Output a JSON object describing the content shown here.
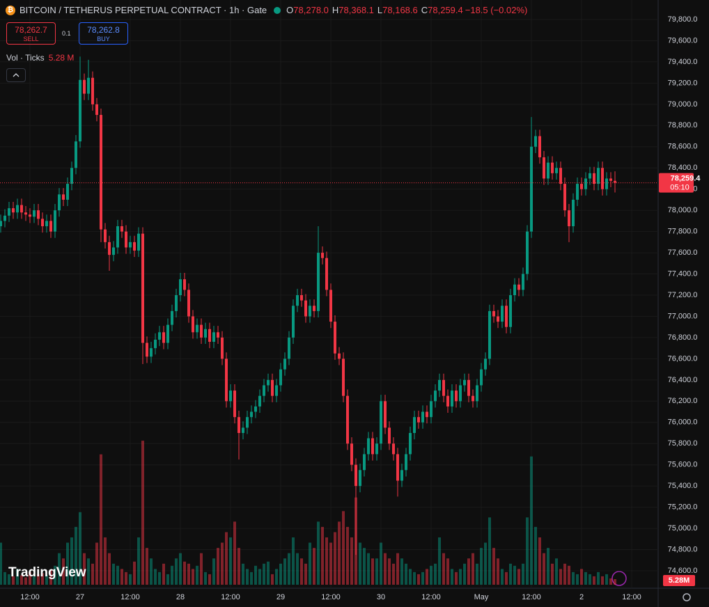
{
  "header": {
    "title": "BITCOIN / TETHERUS PERPETUAL CONTRACT · 1h · Gate",
    "ohlc": [
      {
        "key": "O",
        "value": "78,278.0"
      },
      {
        "key": "H",
        "value": "78,368.1"
      },
      {
        "key": "L",
        "value": "78,168.6"
      },
      {
        "key": "C",
        "value": "78,259.4"
      }
    ],
    "change": "−18.5 (−0.02%)",
    "sell_price": "78,262.7",
    "sell": "SELL",
    "spread": "0.1",
    "buy_price": "78,262.8",
    "buy": "BUY",
    "volume_title": "Vol · Ticks",
    "volume_value": "5.28 M"
  },
  "logo": "TradingView",
  "chart_data": {
    "type": "candlestick",
    "up_color": "#089981",
    "down_color": "#f23645",
    "grid": true,
    "categories": [
      null,
      null,
      null,
      null,
      null,
      null,
      null,
      "12:00",
      null,
      null,
      null,
      null,
      null,
      null,
      null,
      null,
      null,
      null,
      null,
      "27",
      null,
      null,
      null,
      null,
      null,
      null,
      null,
      null,
      null,
      null,
      null,
      "12:00",
      null,
      null,
      null,
      null,
      null,
      null,
      null,
      null,
      null,
      null,
      null,
      "28",
      null,
      null,
      null,
      null,
      null,
      null,
      null,
      null,
      null,
      null,
      null,
      "12:00",
      null,
      null,
      null,
      null,
      null,
      null,
      null,
      null,
      null,
      null,
      null,
      "29",
      null,
      null,
      null,
      null,
      null,
      null,
      null,
      null,
      null,
      null,
      null,
      "12:00",
      null,
      null,
      null,
      null,
      null,
      null,
      null,
      null,
      null,
      null,
      null,
      "30",
      null,
      null,
      null,
      null,
      null,
      null,
      null,
      null,
      null,
      null,
      null,
      "12:00",
      null,
      null,
      null,
      null,
      null,
      null,
      null,
      null,
      null,
      null,
      null,
      "May",
      null,
      null,
      null,
      null,
      null,
      null,
      null,
      null,
      null,
      null,
      null,
      "12:00",
      null,
      null,
      null,
      null,
      null,
      null,
      null,
      null,
      null,
      null,
      null,
      "2",
      null,
      null,
      null,
      null,
      null,
      null,
      null,
      null,
      null,
      null,
      null,
      "12:00"
    ],
    "open": [
      77850,
      77900,
      77950,
      78020,
      77980,
      78050,
      77980,
      77960,
      77940,
      78000,
      77920,
      77850,
      77900,
      77800,
      78000,
      78150,
      78100,
      78250,
      78400,
      78650,
      79230,
      79100,
      79250,
      79000,
      78900,
      77820,
      77700,
      77580,
      77650,
      77850,
      77800,
      77650,
      77700,
      77620,
      77780,
      76750,
      76620,
      76700,
      76780,
      76850,
      76750,
      76920,
      77050,
      77200,
      77350,
      77250,
      77000,
      76850,
      76920,
      76800,
      76880,
      76760,
      76850,
      76800,
      76600,
      76200,
      76300,
      76050,
      75900,
      75950,
      76050,
      76100,
      76150,
      76250,
      76350,
      76400,
      76250,
      76350,
      76500,
      76600,
      76800,
      77100,
      77200,
      77150,
      77000,
      77100,
      77050,
      77600,
      77550,
      77250,
      76950,
      76650,
      76600,
      76250,
      75800,
      75600,
      75400,
      75550,
      75700,
      75850,
      75700,
      75800,
      76200,
      75950,
      75800,
      75700,
      75450,
      75550,
      75700,
      75900,
      76050,
      76000,
      76100,
      76050,
      76200,
      76300,
      76400,
      76250,
      76150,
      76300,
      76200,
      76350,
      76400,
      76250,
      76200,
      76350,
      76500,
      76600,
      77050,
      77000,
      76950,
      77100,
      76900,
      77200,
      77300,
      77250,
      77400,
      77800,
      78600,
      78700,
      78500,
      78300,
      78450,
      78350,
      78400,
      78250,
      78000,
      77850,
      78100,
      78250,
      78200,
      78300,
      78350,
      78250,
      78400,
      78200,
      78300,
      78278.0,
      null,
      null,
      null,
      null
    ],
    "high": [
      77960,
      78010,
      78080,
      78080,
      78110,
      78110,
      78040,
      78020,
      78060,
      78060,
      77980,
      77960,
      77960,
      78060,
      78210,
      78210,
      78310,
      78460,
      78710,
      79450,
      79290,
      79420,
      79310,
      79060,
      78960,
      77880,
      77760,
      77710,
      77910,
      77910,
      77860,
      77760,
      77760,
      77840,
      77840,
      76810,
      76760,
      76840,
      76910,
      76910,
      76980,
      77110,
      77260,
      77410,
      77410,
      77310,
      77060,
      76980,
      76980,
      76940,
      76940,
      76910,
      76910,
      76860,
      76660,
      76360,
      76360,
      76110,
      76010,
      76110,
      76160,
      76210,
      76310,
      76410,
      76460,
      76460,
      76410,
      76560,
      76660,
      76860,
      77160,
      77260,
      77260,
      77210,
      77160,
      77160,
      77850,
      77660,
      77610,
      77310,
      77010,
      76710,
      76660,
      76310,
      75860,
      75660,
      75610,
      75760,
      75910,
      75910,
      75860,
      76260,
      76260,
      76010,
      75860,
      75760,
      75610,
      75760,
      75960,
      76110,
      76110,
      76160,
      76160,
      76260,
      76360,
      76460,
      76460,
      76310,
      76360,
      76360,
      76410,
      76460,
      76460,
      76310,
      76410,
      76560,
      76660,
      77110,
      77110,
      77060,
      77160,
      77160,
      77260,
      77360,
      77360,
      77460,
      77860,
      78880,
      78760,
      78760,
      78560,
      78510,
      78510,
      78460,
      78460,
      78310,
      78060,
      78160,
      78310,
      78310,
      78360,
      78410,
      78410,
      78460,
      78460,
      78360,
      78360,
      78368.1,
      null,
      null,
      null,
      null
    ],
    "low": [
      77790,
      77840,
      77890,
      77920,
      77920,
      77920,
      77900,
      77880,
      77880,
      77860,
      77790,
      77790,
      77740,
      77740,
      77940,
      78040,
      78040,
      78190,
      78340,
      78590,
      79040,
      79040,
      78940,
      78840,
      77700,
      77640,
      77430,
      77520,
      77590,
      77740,
      77590,
      77590,
      77560,
      77560,
      76550,
      76560,
      76560,
      76640,
      76720,
      76690,
      76690,
      76860,
      76990,
      77140,
      77190,
      76940,
      76790,
      76790,
      76740,
      76740,
      76700,
      76700,
      76740,
      76540,
      76140,
      76140,
      75990,
      75650,
      75840,
      75890,
      75990,
      76040,
      76090,
      76190,
      76290,
      76190,
      76190,
      76290,
      76440,
      76540,
      76740,
      77040,
      77090,
      76940,
      76940,
      76990,
      76990,
      77490,
      77190,
      76890,
      76590,
      76540,
      76190,
      75740,
      75540,
      74750,
      75340,
      75490,
      75640,
      75640,
      75640,
      75740,
      75890,
      75740,
      75640,
      75300,
      75390,
      75490,
      75640,
      75840,
      75940,
      75940,
      75990,
      75990,
      76140,
      76240,
      76190,
      76090,
      76090,
      76140,
      76140,
      76290,
      76190,
      76140,
      76140,
      76290,
      76440,
      76540,
      76940,
      76890,
      76890,
      76840,
      76840,
      77140,
      77190,
      77190,
      77340,
      77740,
      78540,
      78440,
      78240,
      78240,
      78290,
      78290,
      78190,
      77940,
      77700,
      77790,
      78040,
      78140,
      78140,
      78240,
      78190,
      78190,
      78140,
      78140,
      78218,
      78168.6,
      null,
      null,
      null,
      null
    ],
    "close": [
      77900,
      77950,
      78020,
      77980,
      78050,
      77980,
      77960,
      77940,
      78000,
      77920,
      77850,
      77900,
      77800,
      78000,
      78150,
      78100,
      78250,
      78400,
      78650,
      79230,
      79100,
      79250,
      79000,
      78900,
      77820,
      77700,
      77580,
      77650,
      77850,
      77800,
      77650,
      77700,
      77620,
      77780,
      76750,
      76620,
      76700,
      76780,
      76850,
      76750,
      76920,
      77050,
      77200,
      77350,
      77250,
      77000,
      76850,
      76920,
      76800,
      76880,
      76760,
      76850,
      76800,
      76600,
      76200,
      76300,
      76050,
      75900,
      75950,
      76050,
      76100,
      76150,
      76250,
      76350,
      76400,
      76250,
      76350,
      76500,
      76600,
      76800,
      77100,
      77200,
      77150,
      77000,
      77100,
      77050,
      77600,
      77550,
      77250,
      76950,
      76650,
      76600,
      76250,
      75800,
      75600,
      75400,
      75550,
      75700,
      75850,
      75700,
      75800,
      76200,
      75950,
      75800,
      75700,
      75450,
      75550,
      75700,
      75900,
      76050,
      76000,
      76100,
      76050,
      76200,
      76300,
      76400,
      76250,
      76150,
      76300,
      76200,
      76350,
      76400,
      76250,
      76200,
      76350,
      76500,
      76600,
      77050,
      77000,
      76950,
      77100,
      76900,
      77200,
      77300,
      77250,
      77400,
      77800,
      78600,
      78700,
      78500,
      78300,
      78450,
      78350,
      78400,
      78250,
      78000,
      77850,
      78100,
      78250,
      78200,
      78300,
      78350,
      78250,
      78400,
      78200,
      78300,
      78278,
      78259.4,
      null,
      null,
      null,
      null
    ],
    "volume": [
      40,
      12,
      10,
      8,
      15,
      9,
      7,
      12,
      8,
      10,
      11,
      9,
      14,
      18,
      30,
      25,
      40,
      45,
      55,
      69,
      30,
      25,
      20,
      40,
      124,
      45,
      30,
      20,
      18,
      15,
      12,
      10,
      22,
      45,
      137,
      35,
      25,
      15,
      12,
      20,
      10,
      18,
      25,
      30,
      22,
      20,
      15,
      18,
      30,
      12,
      10,
      25,
      35,
      40,
      50,
      45,
      60,
      35,
      20,
      15,
      12,
      18,
      15,
      20,
      22,
      10,
      15,
      20,
      25,
      30,
      45,
      30,
      25,
      20,
      40,
      35,
      60,
      55,
      45,
      40,
      50,
      60,
      70,
      55,
      45,
      83,
      40,
      35,
      30,
      25,
      25,
      40,
      30,
      25,
      20,
      30,
      25,
      20,
      15,
      12,
      10,
      12,
      15,
      18,
      20,
      45,
      30,
      25,
      15,
      12,
      15,
      20,
      25,
      30,
      20,
      35,
      40,
      64,
      35,
      25,
      15,
      12,
      20,
      18,
      15,
      20,
      64,
      122,
      55,
      45,
      30,
      35,
      20,
      25,
      15,
      20,
      18,
      12,
      10,
      15,
      12,
      10,
      8,
      12,
      8,
      10,
      6,
      5.28,
      null,
      null,
      null,
      null
    ],
    "volume_ylim": [
      0,
      190
    ],
    "ylim": [
      74600,
      79800
    ],
    "yticks": [
      {
        "value": 74600,
        "label": "74,600.0"
      },
      {
        "value": 74800,
        "label": "74,800.0"
      },
      {
        "value": 75000,
        "label": "75,000.0"
      },
      {
        "value": 75200,
        "label": "75,200.0"
      },
      {
        "value": 75400,
        "label": "75,400.0"
      },
      {
        "value": 75600,
        "label": "75,600.0"
      },
      {
        "value": 75800,
        "label": "75,800.0"
      },
      {
        "value": 76000,
        "label": "76,000.0"
      },
      {
        "value": 76200,
        "label": "76,200.0"
      },
      {
        "value": 76400,
        "label": "76,400.0"
      },
      {
        "value": 76600,
        "label": "76,600.0"
      },
      {
        "value": 76800,
        "label": "76,800.0"
      },
      {
        "value": 77000,
        "label": "77,000.0"
      },
      {
        "value": 77200,
        "label": "77,200.0"
      },
      {
        "value": 77400,
        "label": "77,400.0"
      },
      {
        "value": 77600,
        "label": "77,600.0"
      },
      {
        "value": 77800,
        "label": "77,800.0"
      },
      {
        "value": 78000,
        "label": "78,000.0"
      },
      {
        "value": 78200,
        "label": "78,200.0"
      },
      {
        "value": 78400,
        "label": "78,400.0"
      },
      {
        "value": 78600,
        "label": "78,600.0"
      },
      {
        "value": 78800,
        "label": "78,800.0"
      },
      {
        "value": 79000,
        "label": "79,000.0"
      },
      {
        "value": 79200,
        "label": "79,200.0"
      },
      {
        "value": 79400,
        "label": "79,400.0"
      },
      {
        "value": 79600,
        "label": "79,600.0"
      },
      {
        "value": 79800,
        "label": "79,800.0"
      }
    ],
    "price_label": "78,259.4",
    "countdown": "05:10",
    "volume_tag": "5.28M"
  }
}
